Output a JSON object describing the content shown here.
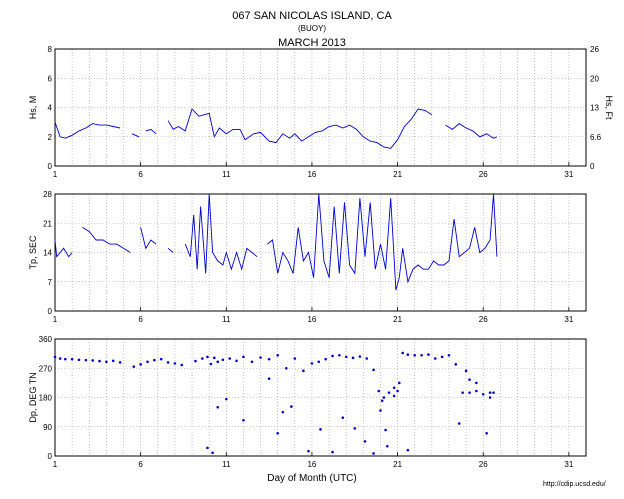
{
  "header": {
    "title": "067 SAN NICOLAS ISLAND, CA",
    "subtitle": "(BUOY)",
    "month": "MARCH 2013"
  },
  "footer": {
    "xlabel": "Day of Month (UTC)",
    "credit": "http://cdip.ucsd.edu/"
  },
  "colors": {
    "series": "#0000cc",
    "grid": "#9a9a9a",
    "axis": "#000000"
  },
  "chart_data": [
    {
      "type": "line",
      "title": "",
      "xlabel": "",
      "ylabel": "Hs, M",
      "ylabel_right": "Hs, Ft",
      "xlim": [
        1,
        32
      ],
      "ylim": [
        0,
        8
      ],
      "x_ticks": [
        1,
        6,
        11,
        16,
        21,
        26,
        31
      ],
      "y_ticks": [
        0,
        2,
        4,
        6,
        8
      ],
      "y_ticks_right": [
        "0",
        "6.6",
        "13",
        "20",
        "26"
      ],
      "grid": true,
      "series": [
        {
          "x": [
            1.0,
            1.3,
            1.6,
            2.0,
            2.4,
            2.8,
            3.2,
            3.6,
            4.0,
            4.4,
            4.8,
            5.0,
            5.5,
            5.9,
            6.0,
            6.3,
            6.6,
            6.9,
            7.2,
            7.6,
            7.9,
            8.2,
            8.6,
            9.0,
            9.4,
            9.7,
            10.0,
            10.3,
            10.6,
            11.0,
            11.4,
            11.8,
            12.1,
            12.6,
            13.0,
            13.5,
            13.9,
            14.3,
            14.7,
            15.0,
            15.4,
            15.8,
            16.2,
            16.6,
            17.0,
            17.4,
            17.8,
            18.2,
            18.6,
            19.0,
            19.4,
            19.8,
            20.2,
            20.6,
            21.0,
            21.4,
            21.8,
            22.2,
            22.6,
            23.0,
            23.4,
            23.8,
            24.2,
            24.6,
            25.0,
            25.4,
            25.8,
            26.2,
            26.6,
            26.8
          ],
          "y": [
            3.0,
            2.0,
            1.9,
            2.1,
            2.4,
            2.6,
            2.9,
            2.8,
            2.8,
            2.7,
            2.6,
            null,
            2.2,
            2.0,
            null,
            2.4,
            2.5,
            2.2,
            null,
            3.1,
            2.5,
            2.7,
            2.4,
            3.9,
            3.4,
            3.5,
            3.6,
            2.0,
            2.6,
            2.2,
            2.5,
            2.5,
            1.8,
            2.2,
            2.3,
            1.7,
            1.6,
            2.2,
            1.9,
            2.2,
            1.7,
            2.0,
            2.3,
            2.4,
            2.7,
            2.8,
            2.6,
            2.8,
            2.5,
            2.0,
            1.7,
            1.6,
            1.3,
            1.2,
            1.8,
            2.7,
            3.2,
            3.9,
            3.8,
            3.5,
            null,
            2.8,
            2.5,
            2.9,
            2.6,
            2.4,
            2.0,
            2.2,
            1.9,
            2.0
          ]
        }
      ]
    },
    {
      "type": "line",
      "title": "",
      "xlabel": "",
      "ylabel": "Tp, SEC",
      "xlim": [
        1,
        32
      ],
      "ylim": [
        0,
        28
      ],
      "x_ticks": [
        1,
        6,
        11,
        16,
        21,
        26,
        31
      ],
      "y_ticks": [
        0,
        7,
        14,
        21,
        28
      ],
      "grid": true,
      "series": [
        {
          "x": [
            1.0,
            1.1,
            1.3,
            1.5,
            1.8,
            2.0,
            2.3,
            2.6,
            3.0,
            3.4,
            3.8,
            4.2,
            4.6,
            5.0,
            5.4,
            5.9,
            6.0,
            6.3,
            6.6,
            6.9,
            7.2,
            7.6,
            7.9,
            8.3,
            8.6,
            8.9,
            9.1,
            9.3,
            9.5,
            9.8,
            10.0,
            10.2,
            10.5,
            10.8,
            11.0,
            11.3,
            11.6,
            11.9,
            12.2,
            12.5,
            12.8,
            13.1,
            13.4,
            13.7,
            14.0,
            14.3,
            14.6,
            14.9,
            15.2,
            15.5,
            15.8,
            16.1,
            16.4,
            16.7,
            17.0,
            17.3,
            17.6,
            17.9,
            18.2,
            18.5,
            18.8,
            19.1,
            19.4,
            19.7,
            20.0,
            20.3,
            20.6,
            20.9,
            21.1,
            21.3,
            21.6,
            21.9,
            22.2,
            22.5,
            22.8,
            23.1,
            23.4,
            23.7,
            24.0,
            24.3,
            24.6,
            24.9,
            25.2,
            25.5,
            25.8,
            26.1,
            26.4,
            26.6,
            26.8
          ],
          "y": [
            17,
            13,
            14,
            15,
            13,
            14,
            null,
            20,
            19,
            17,
            17,
            16,
            16,
            15,
            14,
            null,
            20,
            15,
            17,
            16,
            null,
            15,
            14,
            null,
            16,
            13,
            23,
            10,
            25,
            9,
            28,
            14,
            12,
            11,
            14,
            10,
            14,
            10,
            15,
            14,
            13,
            null,
            16,
            17,
            9,
            14,
            12,
            9,
            20,
            12,
            14,
            8,
            28,
            12,
            8,
            25,
            9,
            26,
            11,
            9,
            27,
            13,
            26,
            10,
            16,
            10,
            27,
            5,
            8,
            15,
            7,
            10,
            11,
            10,
            10,
            12,
            11,
            11,
            12,
            22,
            13,
            14,
            15,
            20,
            14,
            15,
            17,
            28,
            13
          ]
        }
      ]
    },
    {
      "type": "scatter",
      "title": "",
      "xlabel": "Day of Month (UTC)",
      "ylabel": "Dp, DEG TN",
      "xlim": [
        1,
        32
      ],
      "ylim": [
        0,
        360
      ],
      "x_ticks": [
        1,
        6,
        11,
        16,
        21,
        26,
        31
      ],
      "y_ticks": [
        0,
        90,
        180,
        270,
        360
      ],
      "grid": true,
      "series": [
        {
          "x": [
            1.0,
            1.3,
            1.6,
            2.0,
            2.4,
            2.8,
            3.2,
            3.6,
            4.0,
            4.4,
            4.8,
            5.6,
            6.0,
            6.4,
            6.8,
            7.2,
            7.6,
            8.0,
            8.4,
            9.2,
            9.6,
            9.9,
            10.1,
            10.3,
            10.5,
            10.8,
            11.2,
            11.6,
            12.0,
            12.5,
            13.0,
            13.5,
            14.0,
            14.5,
            15.0,
            15.5,
            16.0,
            16.4,
            16.8,
            17.2,
            17.6,
            18.0,
            18.4,
            18.8,
            19.2,
            19.6,
            19.9,
            20.2,
            20.5,
            20.8,
            21.0,
            21.3,
            21.6,
            22.0,
            22.4,
            22.8,
            23.2,
            23.6,
            24.0,
            24.4,
            24.8,
            25.2,
            25.6,
            26.0,
            26.4,
            26.6,
            9.9,
            10.2,
            10.5,
            11.0,
            12.0,
            13.5,
            14.0,
            14.3,
            14.8,
            15.8,
            16.5,
            17.2,
            17.8,
            18.5,
            19.1,
            19.6,
            20.1,
            20.3,
            20.8,
            21.1,
            21.6,
            25.6,
            26.2,
            26.4,
            24.6,
            25.0,
            25.2,
            20.0,
            20.4
          ],
          "y": [
            305,
            300,
            298,
            298,
            296,
            295,
            294,
            292,
            290,
            293,
            288,
            275,
            282,
            290,
            295,
            298,
            288,
            285,
            280,
            292,
            300,
            305,
            283,
            302,
            290,
            296,
            300,
            293,
            305,
            290,
            303,
            298,
            310,
            270,
            300,
            262,
            285,
            290,
            298,
            308,
            310,
            305,
            302,
            306,
            300,
            265,
            200,
            180,
            195,
            185,
            200,
            317,
            312,
            310,
            310,
            312,
            300,
            305,
            310,
            282,
            195,
            195,
            200,
            190,
            195,
            195,
            25,
            10,
            150,
            175,
            110,
            238,
            70,
            135,
            152,
            15,
            82,
            12,
            118,
            85,
            45,
            8,
            170,
            80,
            210,
            225,
            18,
            225,
            70,
            180,
            100,
            262,
            235,
            140,
            30
          ]
        }
      ]
    }
  ]
}
